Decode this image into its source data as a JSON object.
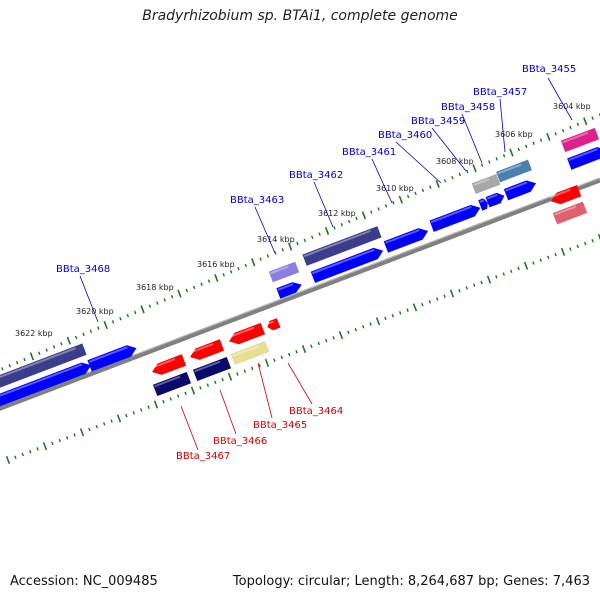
{
  "title": "Bradyrhizobium sp. BTAi1, complete genome",
  "footer": {
    "accession": "Accession: NC_009485",
    "summary": "Topology: circular; Length: 8,264,687 bp; Genes: 7,463"
  },
  "colors": {
    "backbone": "#808080",
    "tick": "#1a7a1a",
    "forward_label": "#0000cc",
    "reverse_label": "#cc0000",
    "blue": "#0000ff",
    "dark_purple": "#3c3c8c",
    "light_purple": "#8a7fe0",
    "navy": "#0a0a6a",
    "red": "#ff0000",
    "salmon": "#e06070",
    "khaki": "#e8e090",
    "gray": "#a8a8a8",
    "steel": "#4a80b0",
    "magenta": "#e0208a"
  },
  "tick_labels": [
    {
      "text": "3604 kbp",
      "kbp": 3604
    },
    {
      "text": "3606 kbp",
      "kbp": 3606
    },
    {
      "text": "3608 kbp",
      "kbp": 3608
    },
    {
      "text": "3610 kbp",
      "kbp": 3610
    },
    {
      "text": "3612 kbp",
      "kbp": 3612
    },
    {
      "text": "3614 kbp",
      "kbp": 3614
    },
    {
      "text": "3616 kbp",
      "kbp": 3616
    },
    {
      "text": "3618 kbp",
      "kbp": 3618
    },
    {
      "text": "3620 kbp",
      "kbp": 3620
    },
    {
      "text": "3622 kbp",
      "kbp": 3622
    }
  ],
  "forward_labels": [
    {
      "text": "BBta_3455",
      "strand": "forward"
    },
    {
      "text": "BBta_3457",
      "strand": "forward"
    },
    {
      "text": "BBta_3458",
      "strand": "forward"
    },
    {
      "text": "BBta_3459",
      "strand": "forward"
    },
    {
      "text": "BBta_3460",
      "strand": "forward"
    },
    {
      "text": "BBta_3461",
      "strand": "forward"
    },
    {
      "text": "BBta_3462",
      "strand": "forward"
    },
    {
      "text": "BBta_3463",
      "strand": "forward"
    },
    {
      "text": "BBta_3468",
      "strand": "forward"
    }
  ],
  "reverse_labels": [
    {
      "text": "BBta_3464",
      "strand": "reverse"
    },
    {
      "text": "BBta_3465",
      "strand": "reverse"
    },
    {
      "text": "BBta_3466",
      "strand": "reverse"
    },
    {
      "text": "BBta_3467",
      "strand": "reverse"
    }
  ]
}
